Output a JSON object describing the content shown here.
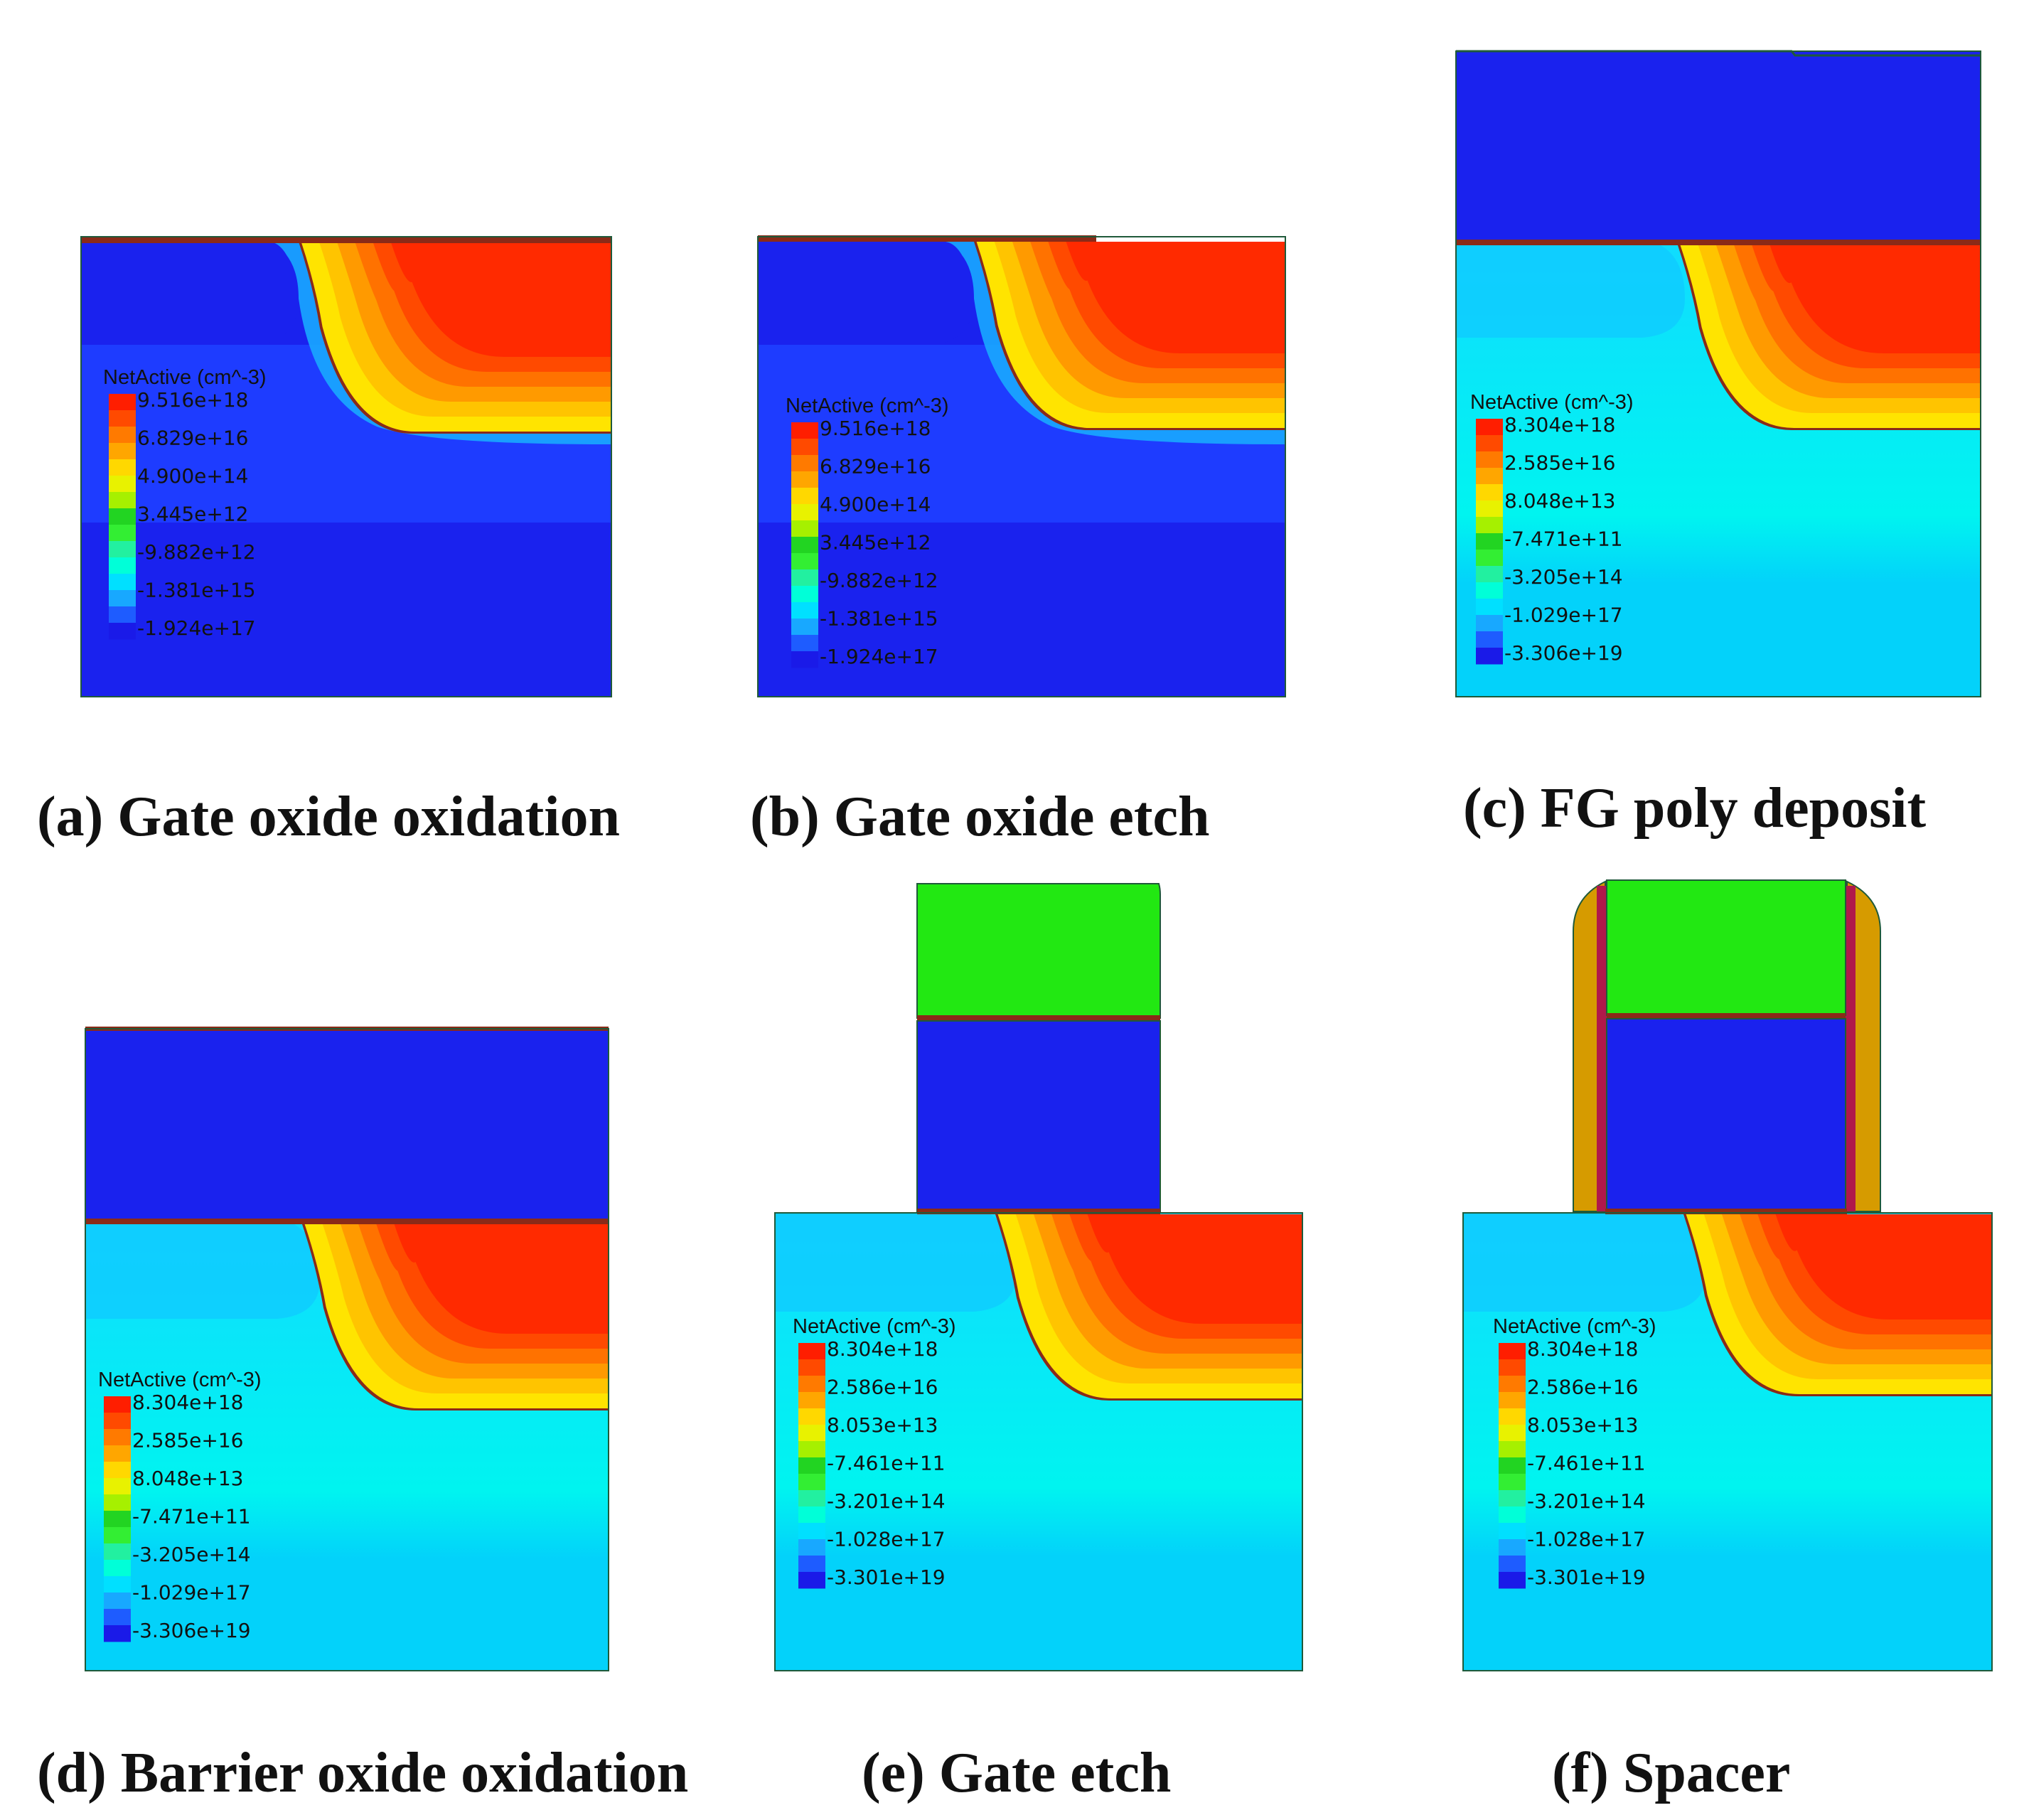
{
  "colors": {
    "substrate_dark": "#1a22ee",
    "substrate_light": "#03d2fa",
    "floating_gate": "#1a22ee",
    "control_gate": "#22e812",
    "spacer": "#d69b00",
    "liner": "#b0184a",
    "oxide": "#8a2a18",
    "outline": "#1f5a3a"
  },
  "legend_scale_colors": [
    "#1a1ae8",
    "#1e5cff",
    "#18a8ff",
    "#00e0ff",
    "#00ffd8",
    "#22f0a0",
    "#33ee33",
    "#22d422",
    "#a6f000",
    "#e8f200",
    "#ffd800",
    "#ffa600",
    "#ff7a00",
    "#ff4a00",
    "#ff1e00"
  ],
  "panels": [
    {
      "id": "a",
      "caption": "(a) Gate oxide oxidation",
      "legend": {
        "title": "NetActive (cm^-3)",
        "ticks": [
          "9.516e+18",
          "6.829e+16",
          "4.900e+14",
          "3.445e+12",
          "-9.882e+12",
          "-1.381e+15",
          "-1.924e+17"
        ]
      }
    },
    {
      "id": "b",
      "caption": "(b) Gate oxide etch",
      "legend": {
        "title": "NetActive (cm^-3)",
        "ticks": [
          "9.516e+18",
          "6.829e+16",
          "4.900e+14",
          "3.445e+12",
          "-9.882e+12",
          "-1.381e+15",
          "-1.924e+17"
        ]
      }
    },
    {
      "id": "c",
      "caption": "(c) FG poly deposit",
      "legend": {
        "title": "NetActive (cm^-3)",
        "ticks": [
          "8.304e+18",
          "2.585e+16",
          "8.048e+13",
          "-7.471e+11",
          "-3.205e+14",
          "-1.029e+17",
          "-3.306e+19"
        ]
      }
    },
    {
      "id": "d",
      "caption": "(d) Barrier oxide oxidation",
      "legend": {
        "title": "NetActive (cm^-3)",
        "ticks": [
          "8.304e+18",
          "2.585e+16",
          "8.048e+13",
          "-7.471e+11",
          "-3.205e+14",
          "-1.029e+17",
          "-3.306e+19"
        ]
      }
    },
    {
      "id": "e",
      "caption": "(e) Gate etch",
      "legend": {
        "title": "NetActive (cm^-3)",
        "ticks": [
          "8.304e+18",
          "2.586e+16",
          "8.053e+13",
          "-7.461e+11",
          "-3.201e+14",
          "-1.028e+17",
          "-3.301e+19"
        ]
      }
    },
    {
      "id": "f",
      "caption": "(f) Spacer",
      "legend": {
        "title": "NetActive (cm^-3)",
        "ticks": [
          "8.304e+18",
          "2.586e+16",
          "8.053e+13",
          "-7.461e+11",
          "-3.201e+14",
          "-1.028e+17",
          "-3.301e+19"
        ]
      }
    }
  ]
}
